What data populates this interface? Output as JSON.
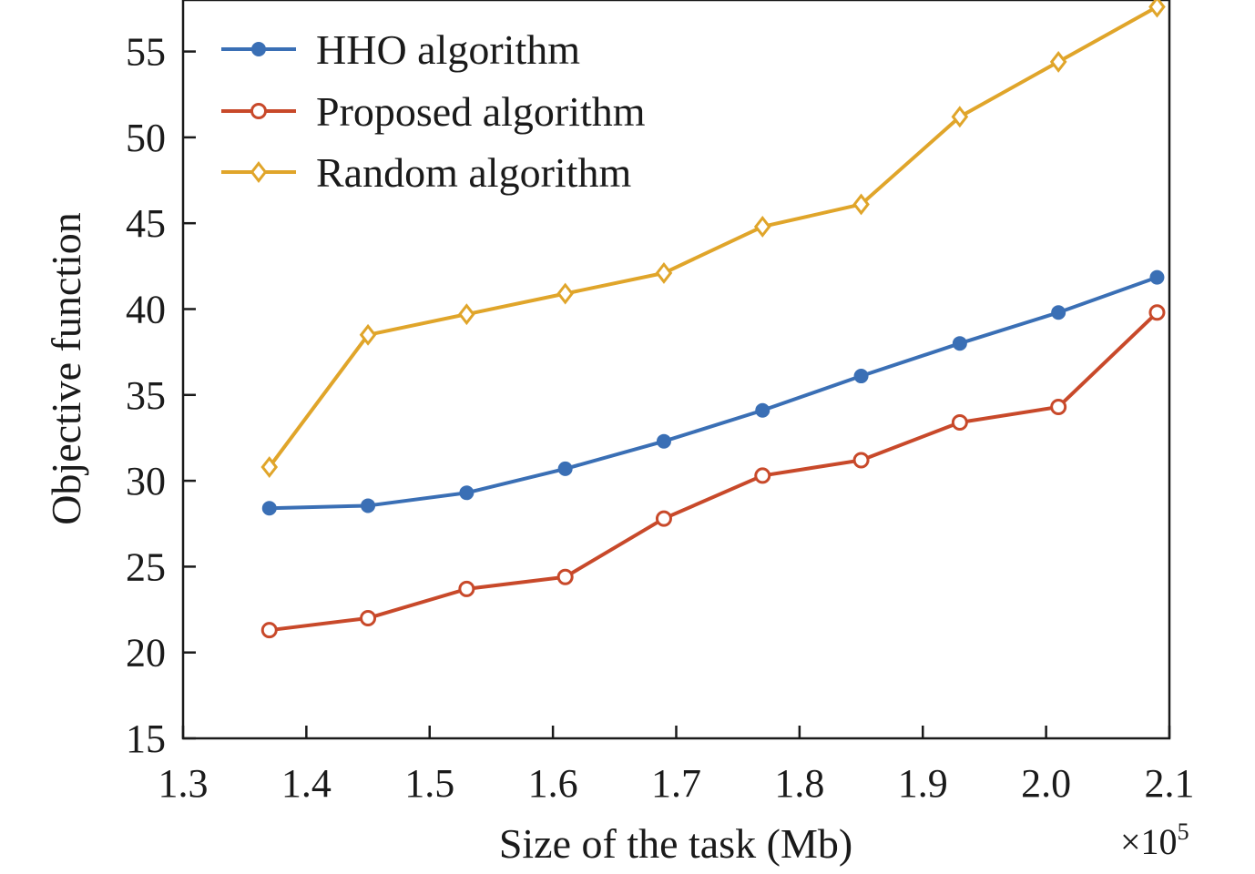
{
  "chart_data": {
    "type": "line",
    "title": "",
    "xlabel": "Size of the task (Mb)",
    "ylabel": "Objective function",
    "x_multiplier_label": "×10",
    "x_multiplier_exponent": "5",
    "xlim": [
      1.3,
      2.1
    ],
    "ylim": [
      15,
      58
    ],
    "xticks": [
      "1.3",
      "1.4",
      "1.5",
      "1.6",
      "1.7",
      "1.8",
      "1.9",
      "2.0",
      "2.1"
    ],
    "yticks": [
      "15",
      "20",
      "25",
      "30",
      "35",
      "40",
      "45",
      "50",
      "55"
    ],
    "grid": false,
    "legend_position": "top-left",
    "x": [
      1.37,
      1.45,
      1.53,
      1.61,
      1.69,
      1.77,
      1.85,
      1.93,
      2.01,
      2.09
    ],
    "series": [
      {
        "name": "HHO algorithm",
        "color": "#3a6fb5",
        "marker": "filled-circle",
        "values": [
          28.4,
          28.55,
          29.3,
          30.7,
          32.3,
          34.1,
          36.1,
          38.0,
          39.8,
          41.85
        ]
      },
      {
        "name": "Proposed algorithm",
        "color": "#c8492a",
        "marker": "open-circle",
        "values": [
          21.3,
          22.0,
          23.7,
          24.4,
          27.8,
          30.3,
          31.2,
          33.4,
          34.3,
          39.8
        ]
      },
      {
        "name": "Random algorithm",
        "color": "#e0a52a",
        "marker": "open-diamond",
        "values": [
          30.8,
          38.5,
          39.7,
          40.9,
          42.1,
          44.8,
          46.1,
          51.2,
          54.4,
          57.6
        ]
      }
    ]
  }
}
